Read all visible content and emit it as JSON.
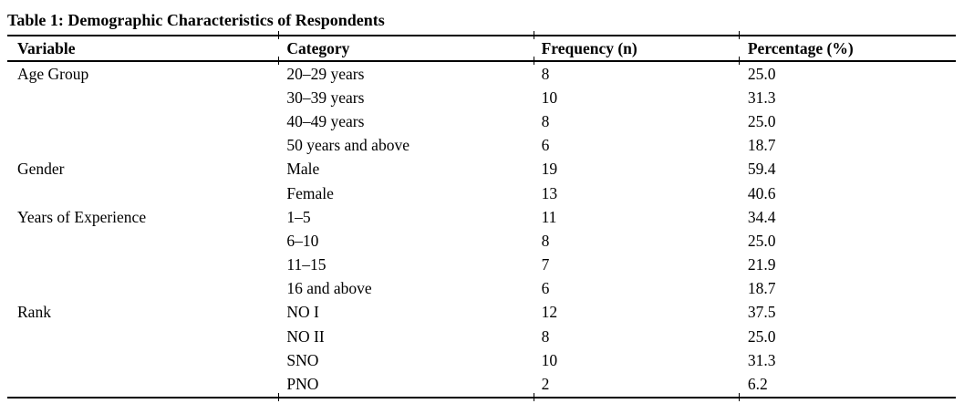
{
  "table": {
    "title": "Table 1: Demographic Characteristics of Respondents",
    "columns": [
      "Variable",
      "Category",
      "Frequency (n)",
      "Percentage (%)"
    ],
    "rows": [
      {
        "variable": "Age Group",
        "category": "20–29 years",
        "frequency": "8",
        "percentage": "25.0"
      },
      {
        "variable": "",
        "category": "30–39 years",
        "frequency": "10",
        "percentage": "31.3"
      },
      {
        "variable": "",
        "category": "40–49 years",
        "frequency": "8",
        "percentage": "25.0"
      },
      {
        "variable": "",
        "category": "50 years and above",
        "frequency": "6",
        "percentage": "18.7"
      },
      {
        "variable": "Gender",
        "category": "Male",
        "frequency": "19",
        "percentage": "59.4"
      },
      {
        "variable": "",
        "category": "Female",
        "frequency": "13",
        "percentage": "40.6"
      },
      {
        "variable": "Years of Experience",
        "category": "1–5",
        "frequency": "11",
        "percentage": "34.4"
      },
      {
        "variable": "",
        "category": "6–10",
        "frequency": "8",
        "percentage": "25.0"
      },
      {
        "variable": "",
        "category": "11–15",
        "frequency": "7",
        "percentage": "21.9"
      },
      {
        "variable": "",
        "category": "16 and above",
        "frequency": "6",
        "percentage": "18.7"
      },
      {
        "variable": "Rank",
        "category": "NO I",
        "frequency": "12",
        "percentage": "37.5"
      },
      {
        "variable": "",
        "category": "NO II",
        "frequency": "8",
        "percentage": "25.0"
      },
      {
        "variable": "",
        "category": "SNO",
        "frequency": "10",
        "percentage": "31.3"
      },
      {
        "variable": "",
        "category": "PNO",
        "frequency": "2",
        "percentage": "6.2"
      }
    ],
    "text_color": "#000000",
    "rule_color": "#000000",
    "background_color": "#ffffff"
  }
}
